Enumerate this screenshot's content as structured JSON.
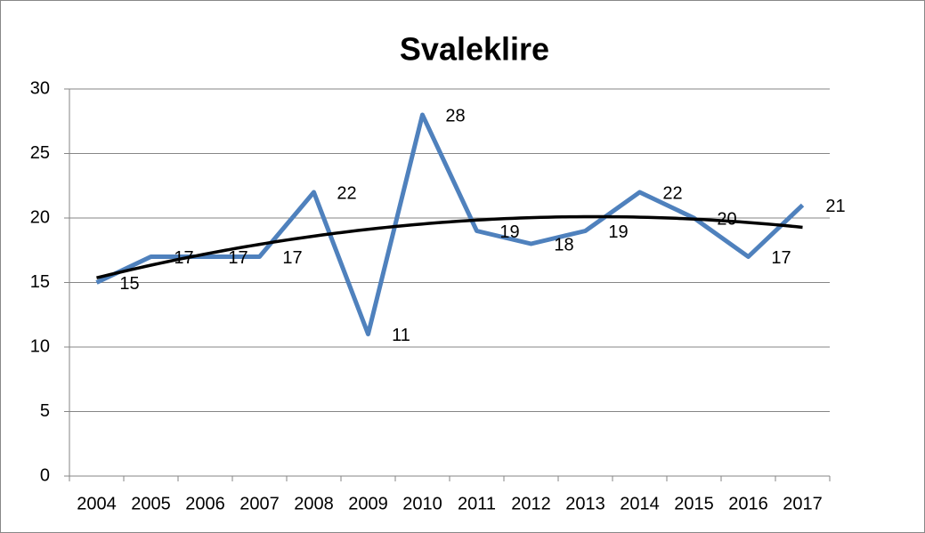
{
  "chart_data": {
    "type": "line",
    "title": "Svaleklire",
    "categories": [
      "2004",
      "2005",
      "2006",
      "2007",
      "2008",
      "2009",
      "2010",
      "2011",
      "2012",
      "2013",
      "2014",
      "2015",
      "2016",
      "2017"
    ],
    "series": [
      {
        "name": "Svaleklire",
        "color": "#4f81bd",
        "values": [
          15,
          17,
          17,
          17,
          22,
          11,
          28,
          19,
          18,
          19,
          22,
          20,
          17,
          21
        ]
      }
    ],
    "ylim": [
      0,
      30
    ],
    "yticks": [
      0,
      5,
      10,
      15,
      20,
      25,
      30
    ],
    "grid": true,
    "trendline": {
      "type": "polynomial",
      "order": 2,
      "color": "#000000"
    }
  }
}
